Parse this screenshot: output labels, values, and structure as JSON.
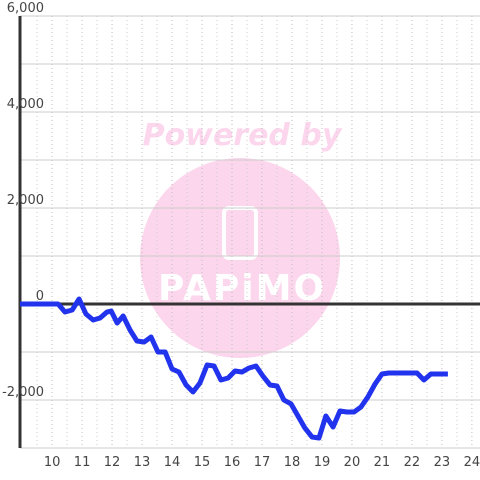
{
  "chart_data": {
    "type": "line",
    "watermark": {
      "text": "Powered by",
      "logo": "PAPiMO"
    },
    "xlim": [
      8.93,
      24.27
    ],
    "ylim": [
      -3000,
      6000
    ],
    "xticks": [
      10,
      11,
      12,
      13,
      14,
      15,
      16,
      17,
      18,
      19,
      20,
      21,
      22,
      23,
      24
    ],
    "minor_xticks": [
      9.5,
      10.5,
      11.5,
      12.5,
      13.5,
      14.5,
      15.5,
      16.5,
      17.5,
      18.5,
      19.5,
      20.5,
      21.5,
      22.5,
      23.5
    ],
    "yticks": [
      {
        "value": -2000,
        "label": "-2,000"
      },
      0,
      {
        "value": 2000,
        "label": "2,000"
      },
      {
        "value": 4000,
        "label": "4,000"
      },
      {
        "value": 6000,
        "label": "6,000"
      }
    ],
    "minor_yticks": [
      -3000,
      -1000,
      1000,
      3000,
      5000
    ],
    "grid": true,
    "series": [
      {
        "color": "#2233ee",
        "x": [
          8.93,
          10.2,
          10.43,
          10.67,
          10.9,
          11.13,
          11.37,
          11.6,
          11.83,
          11.97,
          12.17,
          12.37,
          12.6,
          12.83,
          13.07,
          13.3,
          13.53,
          13.77,
          14.0,
          14.23,
          14.47,
          14.7,
          14.93,
          15.17,
          15.4,
          15.63,
          15.87,
          16.1,
          16.33,
          16.57,
          16.8,
          17.03,
          17.27,
          17.5,
          17.73,
          17.97,
          18.2,
          18.43,
          18.67,
          18.9,
          19.13,
          19.37,
          19.6,
          19.83,
          20.07,
          20.3,
          20.53,
          20.77,
          21.0,
          21.23,
          21.47,
          21.93,
          22.17,
          22.4,
          22.63,
          22.87,
          23.2
        ],
        "values": [
          0,
          0,
          -167,
          -125,
          104,
          -208,
          -333,
          -292,
          -167,
          -146,
          -396,
          -250,
          -542,
          -771,
          -792,
          -688,
          -1000,
          -1000,
          -1354,
          -1417,
          -1688,
          -1833,
          -1646,
          -1271,
          -1292,
          -1583,
          -1542,
          -1396,
          -1417,
          -1333,
          -1292,
          -1500,
          -1688,
          -1708,
          -2000,
          -2083,
          -2333,
          -2583,
          -2771,
          -2792,
          -2333,
          -2563,
          -2229,
          -2250,
          -2250,
          -2146,
          -1938,
          -1667,
          -1458,
          -1438,
          -1438,
          -1438,
          -1438,
          -1583,
          -1458,
          -1458,
          -1458
        ]
      }
    ]
  }
}
